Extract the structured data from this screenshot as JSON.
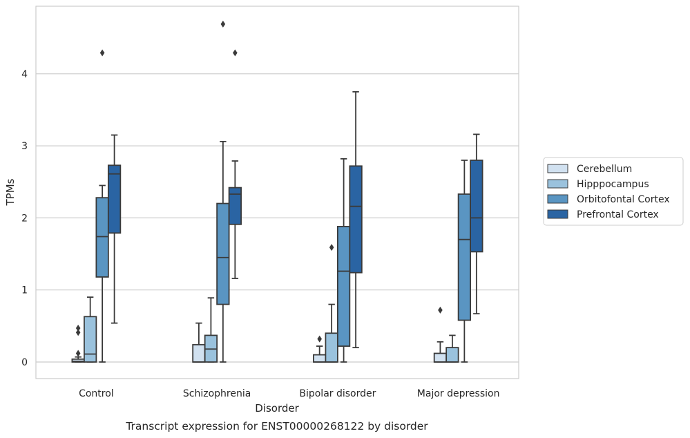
{
  "chart_data": {
    "type": "box",
    "title": "Transcript expression for ENST00000268122 by disorder",
    "xlabel": "Disorder",
    "ylabel": "TPMs",
    "ylim": [
      -0.22,
      4.95
    ],
    "yticks": [
      0,
      1,
      2,
      3,
      4
    ],
    "categories": [
      "Control",
      "Schizophrenia",
      "Bipolar disorder",
      "Major depression"
    ],
    "grid": "horizontal",
    "legend_position": "right",
    "series": [
      {
        "name": "Cerebellum",
        "color": "#d1e1f0",
        "boxes": [
          {
            "category": "Control",
            "min": 0.0,
            "q1": 0.0,
            "median": 0.01,
            "q3": 0.04,
            "max": 0.07,
            "outliers": [
              0.12,
              0.41,
              0.47
            ]
          },
          {
            "category": "Schizophrenia",
            "min": 0.0,
            "q1": 0.0,
            "median": 0.0,
            "q3": 0.24,
            "max": 0.54,
            "outliers": []
          },
          {
            "category": "Bipolar disorder",
            "min": 0.0,
            "q1": 0.0,
            "median": 0.0,
            "q3": 0.1,
            "max": 0.22,
            "outliers": [
              0.32
            ]
          },
          {
            "category": "Major depression",
            "min": 0.0,
            "q1": 0.0,
            "median": 0.0,
            "q3": 0.12,
            "max": 0.28,
            "outliers": [
              0.72
            ]
          }
        ]
      },
      {
        "name": "Hipppocampus",
        "color": "#9ac2dd",
        "boxes": [
          {
            "category": "Control",
            "min": 0.0,
            "q1": 0.0,
            "median": 0.11,
            "q3": 0.63,
            "max": 0.9,
            "outliers": []
          },
          {
            "category": "Schizophrenia",
            "min": 0.0,
            "q1": 0.0,
            "median": 0.18,
            "q3": 0.37,
            "max": 0.89,
            "outliers": []
          },
          {
            "category": "Bipolar disorder",
            "min": 0.0,
            "q1": 0.0,
            "median": 0.0,
            "q3": 0.4,
            "max": 0.8,
            "outliers": [
              1.59
            ]
          },
          {
            "category": "Major depression",
            "min": 0.0,
            "q1": 0.0,
            "median": 0.0,
            "q3": 0.2,
            "max": 0.37,
            "outliers": []
          }
        ]
      },
      {
        "name": "Orbitofontal Cortex",
        "color": "#5a95c2",
        "boxes": [
          {
            "category": "Control",
            "min": 0.0,
            "q1": 1.18,
            "median": 1.74,
            "q3": 2.28,
            "max": 2.45,
            "outliers": [
              4.29
            ]
          },
          {
            "category": "Schizophrenia",
            "min": 0.0,
            "q1": 0.8,
            "median": 1.45,
            "q3": 2.2,
            "max": 3.06,
            "outliers": [
              4.69
            ]
          },
          {
            "category": "Bipolar disorder",
            "min": 0.0,
            "q1": 0.22,
            "median": 1.26,
            "q3": 1.88,
            "max": 2.82,
            "outliers": []
          },
          {
            "category": "Major depression",
            "min": 0.0,
            "q1": 0.58,
            "median": 1.7,
            "q3": 2.33,
            "max": 2.8,
            "outliers": []
          }
        ]
      },
      {
        "name": "Prefrontal Cortex",
        "color": "#2a64a3",
        "boxes": [
          {
            "category": "Control",
            "min": 0.54,
            "q1": 1.79,
            "median": 2.61,
            "q3": 2.73,
            "max": 3.15,
            "outliers": []
          },
          {
            "category": "Schizophrenia",
            "min": 1.16,
            "q1": 1.91,
            "median": 2.33,
            "q3": 2.42,
            "max": 2.79,
            "outliers": [
              4.29
            ]
          },
          {
            "category": "Bipolar disorder",
            "min": 0.2,
            "q1": 1.24,
            "median": 2.16,
            "q3": 2.72,
            "max": 3.75,
            "outliers": []
          },
          {
            "category": "Major depression",
            "min": 0.67,
            "q1": 1.53,
            "median": 2.0,
            "q3": 2.8,
            "max": 3.16,
            "outliers": []
          }
        ]
      }
    ]
  }
}
